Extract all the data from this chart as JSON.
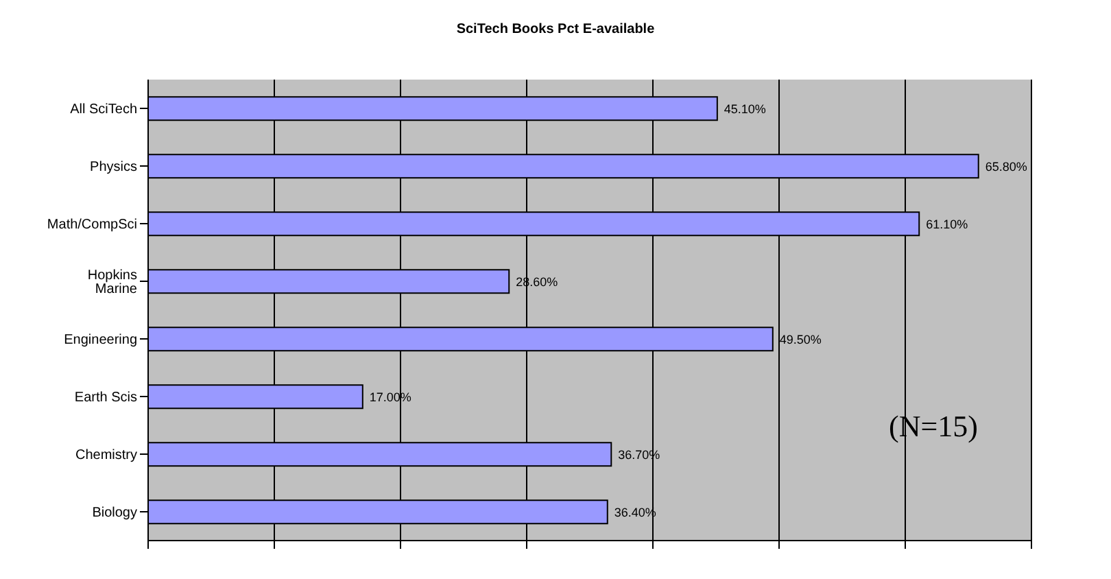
{
  "chart_data": {
    "type": "bar",
    "orientation": "horizontal",
    "title": "SciTech Books Pct E-available",
    "categories": [
      "All SciTech",
      "Physics",
      "Math/CompSci",
      "Hopkins Marine",
      "Engineering",
      "Earth Scis",
      "Chemistry",
      "Biology"
    ],
    "values": [
      45.1,
      65.8,
      61.1,
      28.6,
      49.5,
      17.0,
      36.7,
      36.4
    ],
    "value_labels": [
      "45.10%",
      "65.80%",
      "61.10%",
      "28.60%",
      "49.50%",
      "17.00%",
      "36.70%",
      "36.40%"
    ],
    "color": "#9999ff",
    "grid": "x",
    "tick_labels": "y",
    "annotations": [
      {
        "text": "(N=15)"
      }
    ]
  }
}
